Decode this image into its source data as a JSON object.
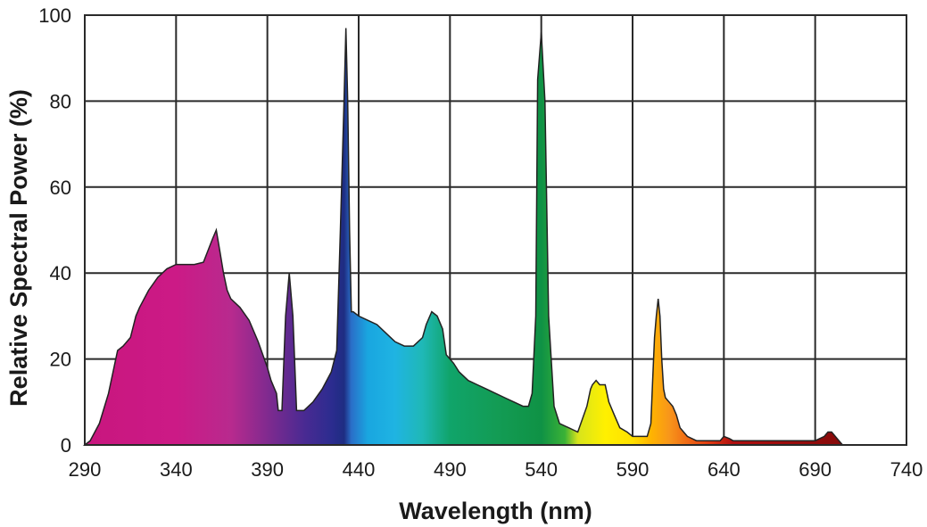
{
  "chart_data": {
    "type": "area",
    "xlabel": "Wavelength (nm)",
    "ylabel": "Relative Spectral Power (%)",
    "xlim": [
      290,
      740
    ],
    "ylim": [
      0,
      100
    ],
    "x_ticks": [
      290,
      340,
      390,
      440,
      490,
      540,
      590,
      640,
      690,
      740
    ],
    "y_ticks": [
      0,
      20,
      40,
      60,
      80,
      100
    ],
    "grid": true,
    "fill": "spectral rainbow gradient by wavelength",
    "series": [
      {
        "x": [
          290,
          293,
          298,
          303,
          308,
          311,
          315,
          318,
          320,
          325,
          330,
          335,
          340,
          345,
          350,
          355,
          360,
          362,
          364,
          366,
          368,
          370,
          375,
          380,
          385,
          390,
          392,
          395,
          396,
          397,
          398,
          400,
          402,
          404,
          406,
          410,
          415,
          420,
          425,
          428,
          430,
          432,
          433,
          434,
          435,
          436,
          437,
          440,
          445,
          450,
          455,
          460,
          465,
          470,
          475,
          477,
          480,
          483,
          486,
          488,
          492,
          495,
          500,
          505,
          510,
          515,
          520,
          525,
          530,
          533,
          535,
          537,
          538,
          540,
          542,
          544,
          547,
          550,
          555,
          560,
          565,
          567,
          568,
          570,
          572,
          575,
          577,
          580,
          583,
          587,
          590,
          595,
          598,
          600,
          601,
          602,
          603,
          604,
          605,
          606,
          607,
          608,
          610,
          612,
          614,
          616,
          620,
          625,
          630,
          632,
          635,
          638,
          640,
          643,
          645,
          650,
          660,
          670,
          680,
          690,
          695,
          697,
          699,
          701,
          703,
          705,
          710,
          720,
          730,
          740
        ],
        "y": [
          0,
          1,
          5,
          12,
          22,
          23,
          25,
          30,
          32,
          36,
          39,
          41,
          42,
          42,
          42,
          42.5,
          48,
          50,
          45,
          40,
          36,
          34,
          32,
          29,
          24,
          18,
          15,
          12,
          8,
          8,
          8,
          30,
          40,
          30,
          8,
          8,
          10,
          13,
          17,
          22,
          50,
          80,
          97,
          80,
          50,
          31,
          31,
          30,
          29,
          28,
          26,
          24,
          23,
          23,
          25,
          28,
          31,
          30,
          27,
          21,
          19,
          17,
          15,
          14,
          13,
          12,
          11,
          10,
          9,
          9,
          12,
          30,
          85,
          96,
          80,
          30,
          9,
          5,
          4,
          3,
          9,
          13,
          14,
          15,
          14,
          14,
          10,
          7,
          4,
          3,
          2,
          2,
          2,
          5,
          15,
          25,
          30,
          34,
          30,
          20,
          13,
          11,
          10,
          9,
          7,
          4,
          2,
          1,
          1,
          1,
          1,
          1,
          2,
          1.5,
          1,
          1,
          1,
          1,
          1,
          1,
          2,
          3,
          3,
          2,
          1,
          0,
          0,
          0,
          0,
          0
        ]
      }
    ]
  }
}
